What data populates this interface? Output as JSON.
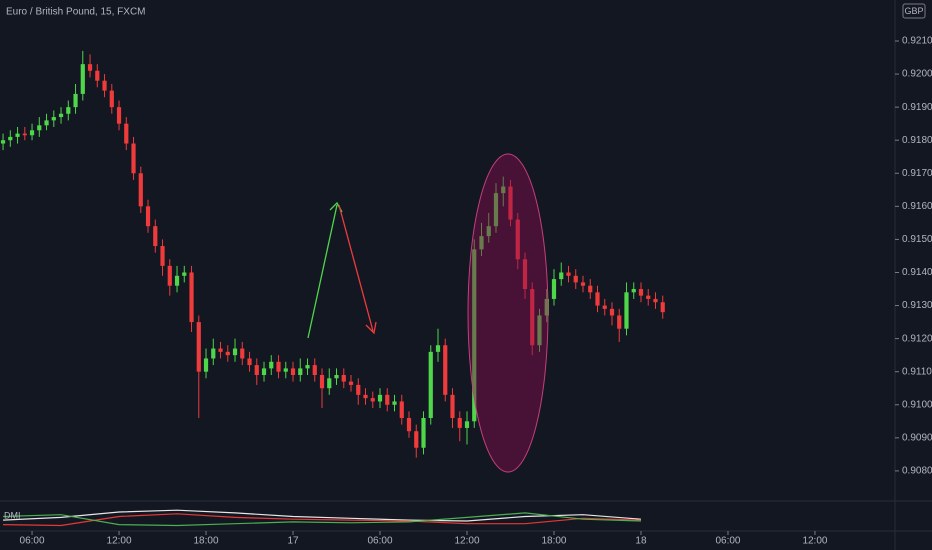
{
  "chart_data": [
    {
      "type": "candlestick",
      "title": "Euro / British Pound, 15, FXCM",
      "currency": "GBP",
      "up_color": "#4fd64a",
      "down_color": "#ef3b3b",
      "xlim": [
        3.79,
        65.52
      ],
      "ylim": [
        0.90712,
        0.92224
      ],
      "grid": false,
      "x": [
        4,
        4.5,
        5,
        5.5,
        6,
        6.5,
        7,
        7.5,
        8,
        8.5,
        9,
        9.5,
        10,
        10.5,
        11,
        11.5,
        12,
        12.5,
        13,
        13.5,
        14,
        14.5,
        15,
        15.5,
        16,
        16.5,
        17,
        17.5,
        18,
        18.5,
        19,
        19.5,
        20,
        20.5,
        21,
        21.5,
        22,
        22.5,
        23,
        23.5,
        24,
        24.5,
        25,
        25.5,
        26,
        26.5,
        27,
        27.5,
        28,
        28.5,
        29,
        29.5,
        30,
        30.5,
        31,
        31.5,
        32,
        32.5,
        33,
        33.5,
        34,
        34.5,
        35,
        35.5,
        36,
        36.5,
        37,
        37.5,
        38,
        38.5,
        39,
        39.5,
        40,
        40.5,
        41,
        41.5,
        42,
        42.5,
        43,
        43.5,
        44,
        44.5,
        45,
        45.5,
        46,
        46.5,
        47,
        47.5,
        48,
        48.5,
        49,
        49.5
      ],
      "open": [
        0.9179,
        0.918,
        0.9181,
        0.9182,
        0.91815,
        0.9183,
        0.91845,
        0.9186,
        0.9187,
        0.9188,
        0.919,
        0.9194,
        0.9203,
        0.9201,
        0.9198,
        0.9195,
        0.919,
        0.9185,
        0.9179,
        0.917,
        0.916,
        0.9154,
        0.9148,
        0.9142,
        0.9136,
        0.9139,
        0.914,
        0.9125,
        0.911,
        0.9114,
        0.9117,
        0.9116,
        0.9115,
        0.9117,
        0.9114,
        0.9112,
        0.9109,
        0.9111,
        0.9113,
        0.911,
        0.9111,
        0.9109,
        0.9111,
        0.9112,
        0.9109,
        0.9105,
        0.9108,
        0.9109,
        0.9107,
        0.9106,
        0.9103,
        0.9102,
        0.9101,
        0.9103,
        0.91,
        0.9101,
        0.9096,
        0.9092,
        0.9087,
        0.9096,
        0.9116,
        0.9118,
        0.9103,
        0.9096,
        0.9093,
        0.9095,
        0.9147,
        0.9151,
        0.9154,
        0.9164,
        0.9166,
        0.9156,
        0.9144,
        0.9135,
        0.9118,
        0.9127,
        0.9132,
        0.9138,
        0.914,
        0.9139,
        0.9137,
        0.9136,
        0.9134,
        0.913,
        0.9129,
        0.9127,
        0.9123,
        0.9134,
        0.9135,
        0.9133,
        0.9132,
        0.9131
      ],
      "high": [
        0.9182,
        0.9183,
        0.9184,
        0.9184,
        0.9185,
        0.9187,
        0.9188,
        0.9189,
        0.919,
        0.9192,
        0.9197,
        0.9207,
        0.9206,
        0.9203,
        0.92,
        0.9197,
        0.9192,
        0.9187,
        0.9181,
        0.9172,
        0.9162,
        0.9156,
        0.915,
        0.9144,
        0.9142,
        0.9142,
        0.9142,
        0.9127,
        0.9117,
        0.912,
        0.9119,
        0.9118,
        0.912,
        0.9119,
        0.9116,
        0.9114,
        0.9113,
        0.9115,
        0.9115,
        0.9113,
        0.9113,
        0.9114,
        0.9114,
        0.9114,
        0.9111,
        0.9111,
        0.9111,
        0.9111,
        0.9109,
        0.9108,
        0.9105,
        0.9104,
        0.9105,
        0.9105,
        0.9103,
        0.9103,
        0.9098,
        0.9094,
        0.9098,
        0.9118,
        0.9123,
        0.912,
        0.9105,
        0.9098,
        0.9098,
        0.915,
        0.9155,
        0.9158,
        0.9167,
        0.9169,
        0.9168,
        0.9158,
        0.9146,
        0.9137,
        0.9129,
        0.9135,
        0.9141,
        0.9143,
        0.9142,
        0.9141,
        0.9139,
        0.9138,
        0.9136,
        0.9132,
        0.9131,
        0.9129,
        0.9137,
        0.9137,
        0.9137,
        0.9135,
        0.9134,
        0.9133
      ],
      "low": [
        0.9177,
        0.9178,
        0.9179,
        0.918,
        0.918,
        0.9181,
        0.9183,
        0.9184,
        0.9185,
        0.9186,
        0.9188,
        0.9192,
        0.9199,
        0.9196,
        0.9193,
        0.9188,
        0.9183,
        0.9177,
        0.9168,
        0.9158,
        0.9152,
        0.9146,
        0.9139,
        0.9133,
        0.9134,
        0.9137,
        0.9122,
        0.9096,
        0.9108,
        0.9112,
        0.9114,
        0.9113,
        0.9113,
        0.9112,
        0.911,
        0.9106,
        0.9107,
        0.9109,
        0.9108,
        0.9108,
        0.9107,
        0.9107,
        0.9109,
        0.9107,
        0.9099,
        0.9103,
        0.9106,
        0.9105,
        0.9104,
        0.91,
        0.91,
        0.9099,
        0.9099,
        0.9098,
        0.9098,
        0.9094,
        0.909,
        0.9084,
        0.9085,
        0.9094,
        0.9113,
        0.9101,
        0.9093,
        0.9089,
        0.9088,
        0.9093,
        0.9145,
        0.9149,
        0.9152,
        0.916,
        0.9154,
        0.9141,
        0.9132,
        0.9115,
        0.9116,
        0.9125,
        0.913,
        0.9136,
        0.9137,
        0.9135,
        0.9134,
        0.9132,
        0.9128,
        0.9127,
        0.9124,
        0.9119,
        0.9121,
        0.9132,
        0.9131,
        0.913,
        0.9129,
        0.9126
      ],
      "close": [
        0.918,
        0.9181,
        0.9182,
        0.91815,
        0.9183,
        0.91845,
        0.9186,
        0.9187,
        0.9188,
        0.919,
        0.9194,
        0.9203,
        0.9201,
        0.9198,
        0.9195,
        0.919,
        0.9185,
        0.9179,
        0.917,
        0.916,
        0.9154,
        0.9148,
        0.9142,
        0.9136,
        0.9139,
        0.914,
        0.9125,
        0.911,
        0.9114,
        0.9117,
        0.9116,
        0.9115,
        0.9117,
        0.9114,
        0.9112,
        0.9109,
        0.9111,
        0.9113,
        0.911,
        0.9111,
        0.9109,
        0.9111,
        0.9112,
        0.9109,
        0.9105,
        0.9108,
        0.9109,
        0.9107,
        0.9106,
        0.9103,
        0.9102,
        0.9101,
        0.9103,
        0.91,
        0.9101,
        0.9096,
        0.9092,
        0.9087,
        0.9096,
        0.9116,
        0.9118,
        0.9103,
        0.9096,
        0.9093,
        0.9095,
        0.9147,
        0.9151,
        0.9154,
        0.9164,
        0.9166,
        0.9156,
        0.9144,
        0.9135,
        0.9118,
        0.9127,
        0.9132,
        0.9138,
        0.914,
        0.9139,
        0.9137,
        0.9136,
        0.9134,
        0.913,
        0.9129,
        0.9127,
        0.9123,
        0.9134,
        0.9135,
        0.9133,
        0.9132,
        0.9131,
        0.9128
      ],
      "yticks": [
        {
          "value": 0.921,
          "label": "0.92100"
        },
        {
          "value": 0.92,
          "label": "0.92000"
        },
        {
          "value": 0.919,
          "label": "0.91900"
        },
        {
          "value": 0.918,
          "label": "0.91800"
        },
        {
          "value": 0.917,
          "label": "0.91700"
        },
        {
          "value": 0.916,
          "label": "0.91600"
        },
        {
          "value": 0.915,
          "label": "0.91500"
        },
        {
          "value": 0.914,
          "label": "0.91400"
        },
        {
          "value": 0.913,
          "label": "0.91300"
        },
        {
          "value": 0.912,
          "label": "0.91200"
        },
        {
          "value": 0.911,
          "label": "0.91100"
        },
        {
          "value": 0.91,
          "label": "0.91000"
        },
        {
          "value": 0.909,
          "label": "0.90900"
        },
        {
          "value": 0.908,
          "label": "0.90800"
        }
      ],
      "xticks": [
        {
          "value": 6,
          "label": "06:00"
        },
        {
          "value": 12,
          "label": "12:00"
        },
        {
          "value": 18,
          "label": "18:00"
        },
        {
          "value": 24,
          "label": "17"
        },
        {
          "value": 30,
          "label": "06:00"
        },
        {
          "value": 36,
          "label": "12:00"
        },
        {
          "value": 42,
          "label": "18:00"
        },
        {
          "value": 48,
          "label": "18"
        },
        {
          "value": 54,
          "label": "06:00"
        },
        {
          "value": 60,
          "label": "12:00"
        }
      ]
    },
    {
      "type": "line",
      "title": "DMI",
      "xlim": [
        3.79,
        65.52
      ],
      "ylim": [
        0,
        60
      ],
      "x": [
        4,
        8,
        12,
        16,
        20,
        24,
        28,
        32,
        36,
        40,
        44,
        48
      ],
      "series": [
        {
          "color": "#e6e6e6",
          "values": [
            22,
            28,
            40,
            44,
            38,
            30,
            26,
            22,
            20,
            30,
            34,
            24
          ]
        },
        {
          "color": "#e53935",
          "values": [
            12,
            10,
            30,
            36,
            28,
            24,
            22,
            20,
            14,
            14,
            26,
            22
          ]
        },
        {
          "color": "#4caf50",
          "values": [
            30,
            34,
            12,
            10,
            14,
            18,
            16,
            18,
            28,
            38,
            24,
            20
          ]
        }
      ]
    }
  ]
}
